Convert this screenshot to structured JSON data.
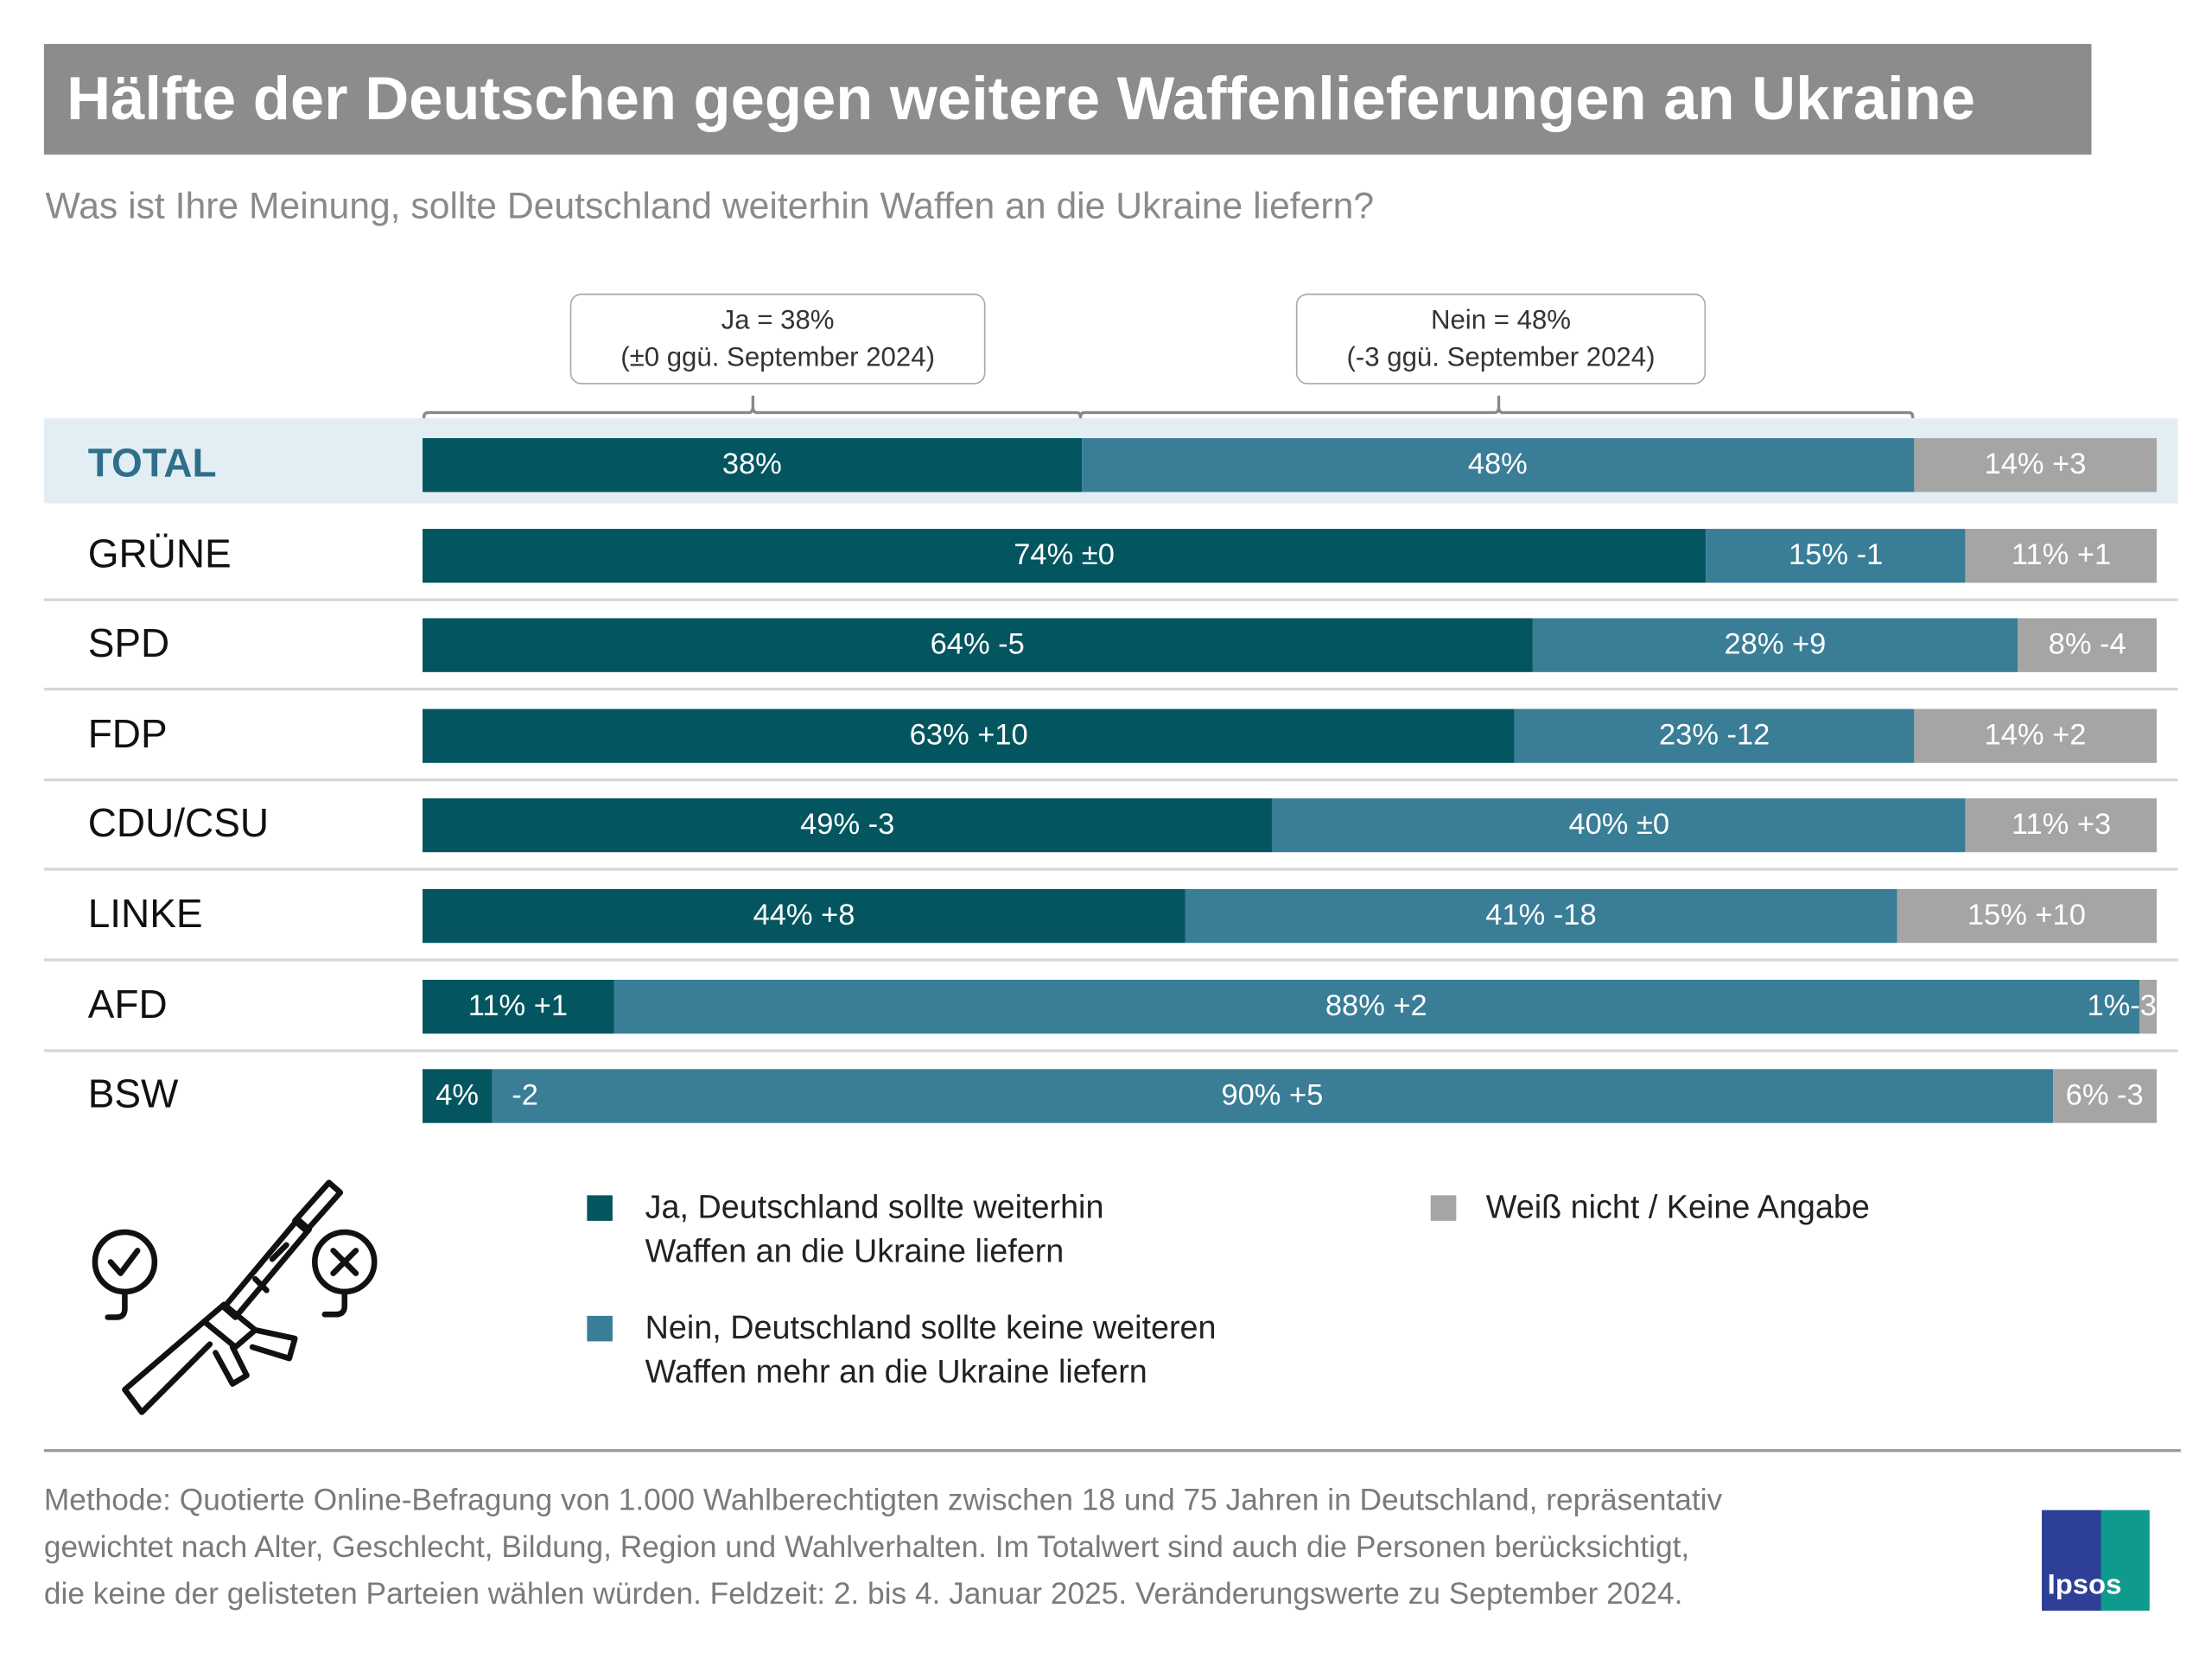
{
  "title": "Hälfte der Deutschen gegen weitere Waffenlieferungen an Ukraine",
  "subtitle": "Was ist Ihre Meinung, sollte Deutschland weiterhin Waffen an die Ukraine liefern?",
  "callouts": {
    "ja_line1": "Ja = 38%",
    "ja_line2": "(±0 ggü. September 2024)",
    "nein_line1": "Nein = 48%",
    "nein_line2": "(-3 ggü. September 2024)"
  },
  "colors": {
    "ja": "#03565f",
    "nein": "#3a7d96",
    "weiss": "#a5a5a5",
    "total_band": "#e3eef4"
  },
  "chart_data": {
    "type": "bar",
    "orientation": "horizontal-stacked-100",
    "unit": "%",
    "categories": [
      "TOTAL",
      "GRÜNE",
      "SPD",
      "FDP",
      "CDU/CSU",
      "LINKE",
      "AFD",
      "BSW"
    ],
    "series": [
      {
        "name": "Ja, Deutschland sollte weiterhin Waffen an die Ukraine liefern",
        "values": [
          38,
          74,
          64,
          63,
          49,
          44,
          11,
          4
        ],
        "changes": [
          "",
          "±0",
          "-5",
          "+10",
          "-3",
          "+8",
          "+1",
          "-2"
        ]
      },
      {
        "name": "Nein, Deutschland sollte keine weiteren Waffen mehr an die Ukraine liefern",
        "values": [
          48,
          15,
          28,
          23,
          40,
          41,
          88,
          90
        ],
        "changes": [
          "",
          "-1",
          "+9",
          "-12",
          "±0",
          "-18",
          "+2",
          "+5"
        ]
      },
      {
        "name": "Weiß nicht / Keine Angabe",
        "values": [
          14,
          11,
          8,
          14,
          11,
          15,
          1,
          6
        ],
        "changes": [
          "+3",
          "+1",
          "-4",
          "+2",
          "+3",
          "+10",
          "-3",
          "-3"
        ]
      }
    ]
  },
  "legend": {
    "ja_line1": "Ja, Deutschland sollte weiterhin",
    "ja_line2": "Waffen an die Ukraine liefern",
    "nein_line1": "Nein, Deutschland sollte keine weiteren",
    "nein_line2": "Waffen mehr an die Ukraine liefern",
    "weiss": "Weiß nicht / Keine Angabe"
  },
  "icon": "rifle-with-check-and-cross-icon",
  "footer": {
    "line1": "Methode: Quotierte Online-Befragung von 1.000 Wahlberechtigten zwischen 18 und 75 Jahren in Deutschland, repräsentativ",
    "line2": "gewichtet nach Alter, Geschlecht, Bildung, Region und Wahlverhalten. Im Totalwert sind auch die Personen berücksichtigt,",
    "line3": "die keine der gelisteten Parteien wählen würden. Feldzeit: 2. bis 4. Januar 2025. Veränderungswerte zu September 2024."
  },
  "logo": "Ipsos"
}
